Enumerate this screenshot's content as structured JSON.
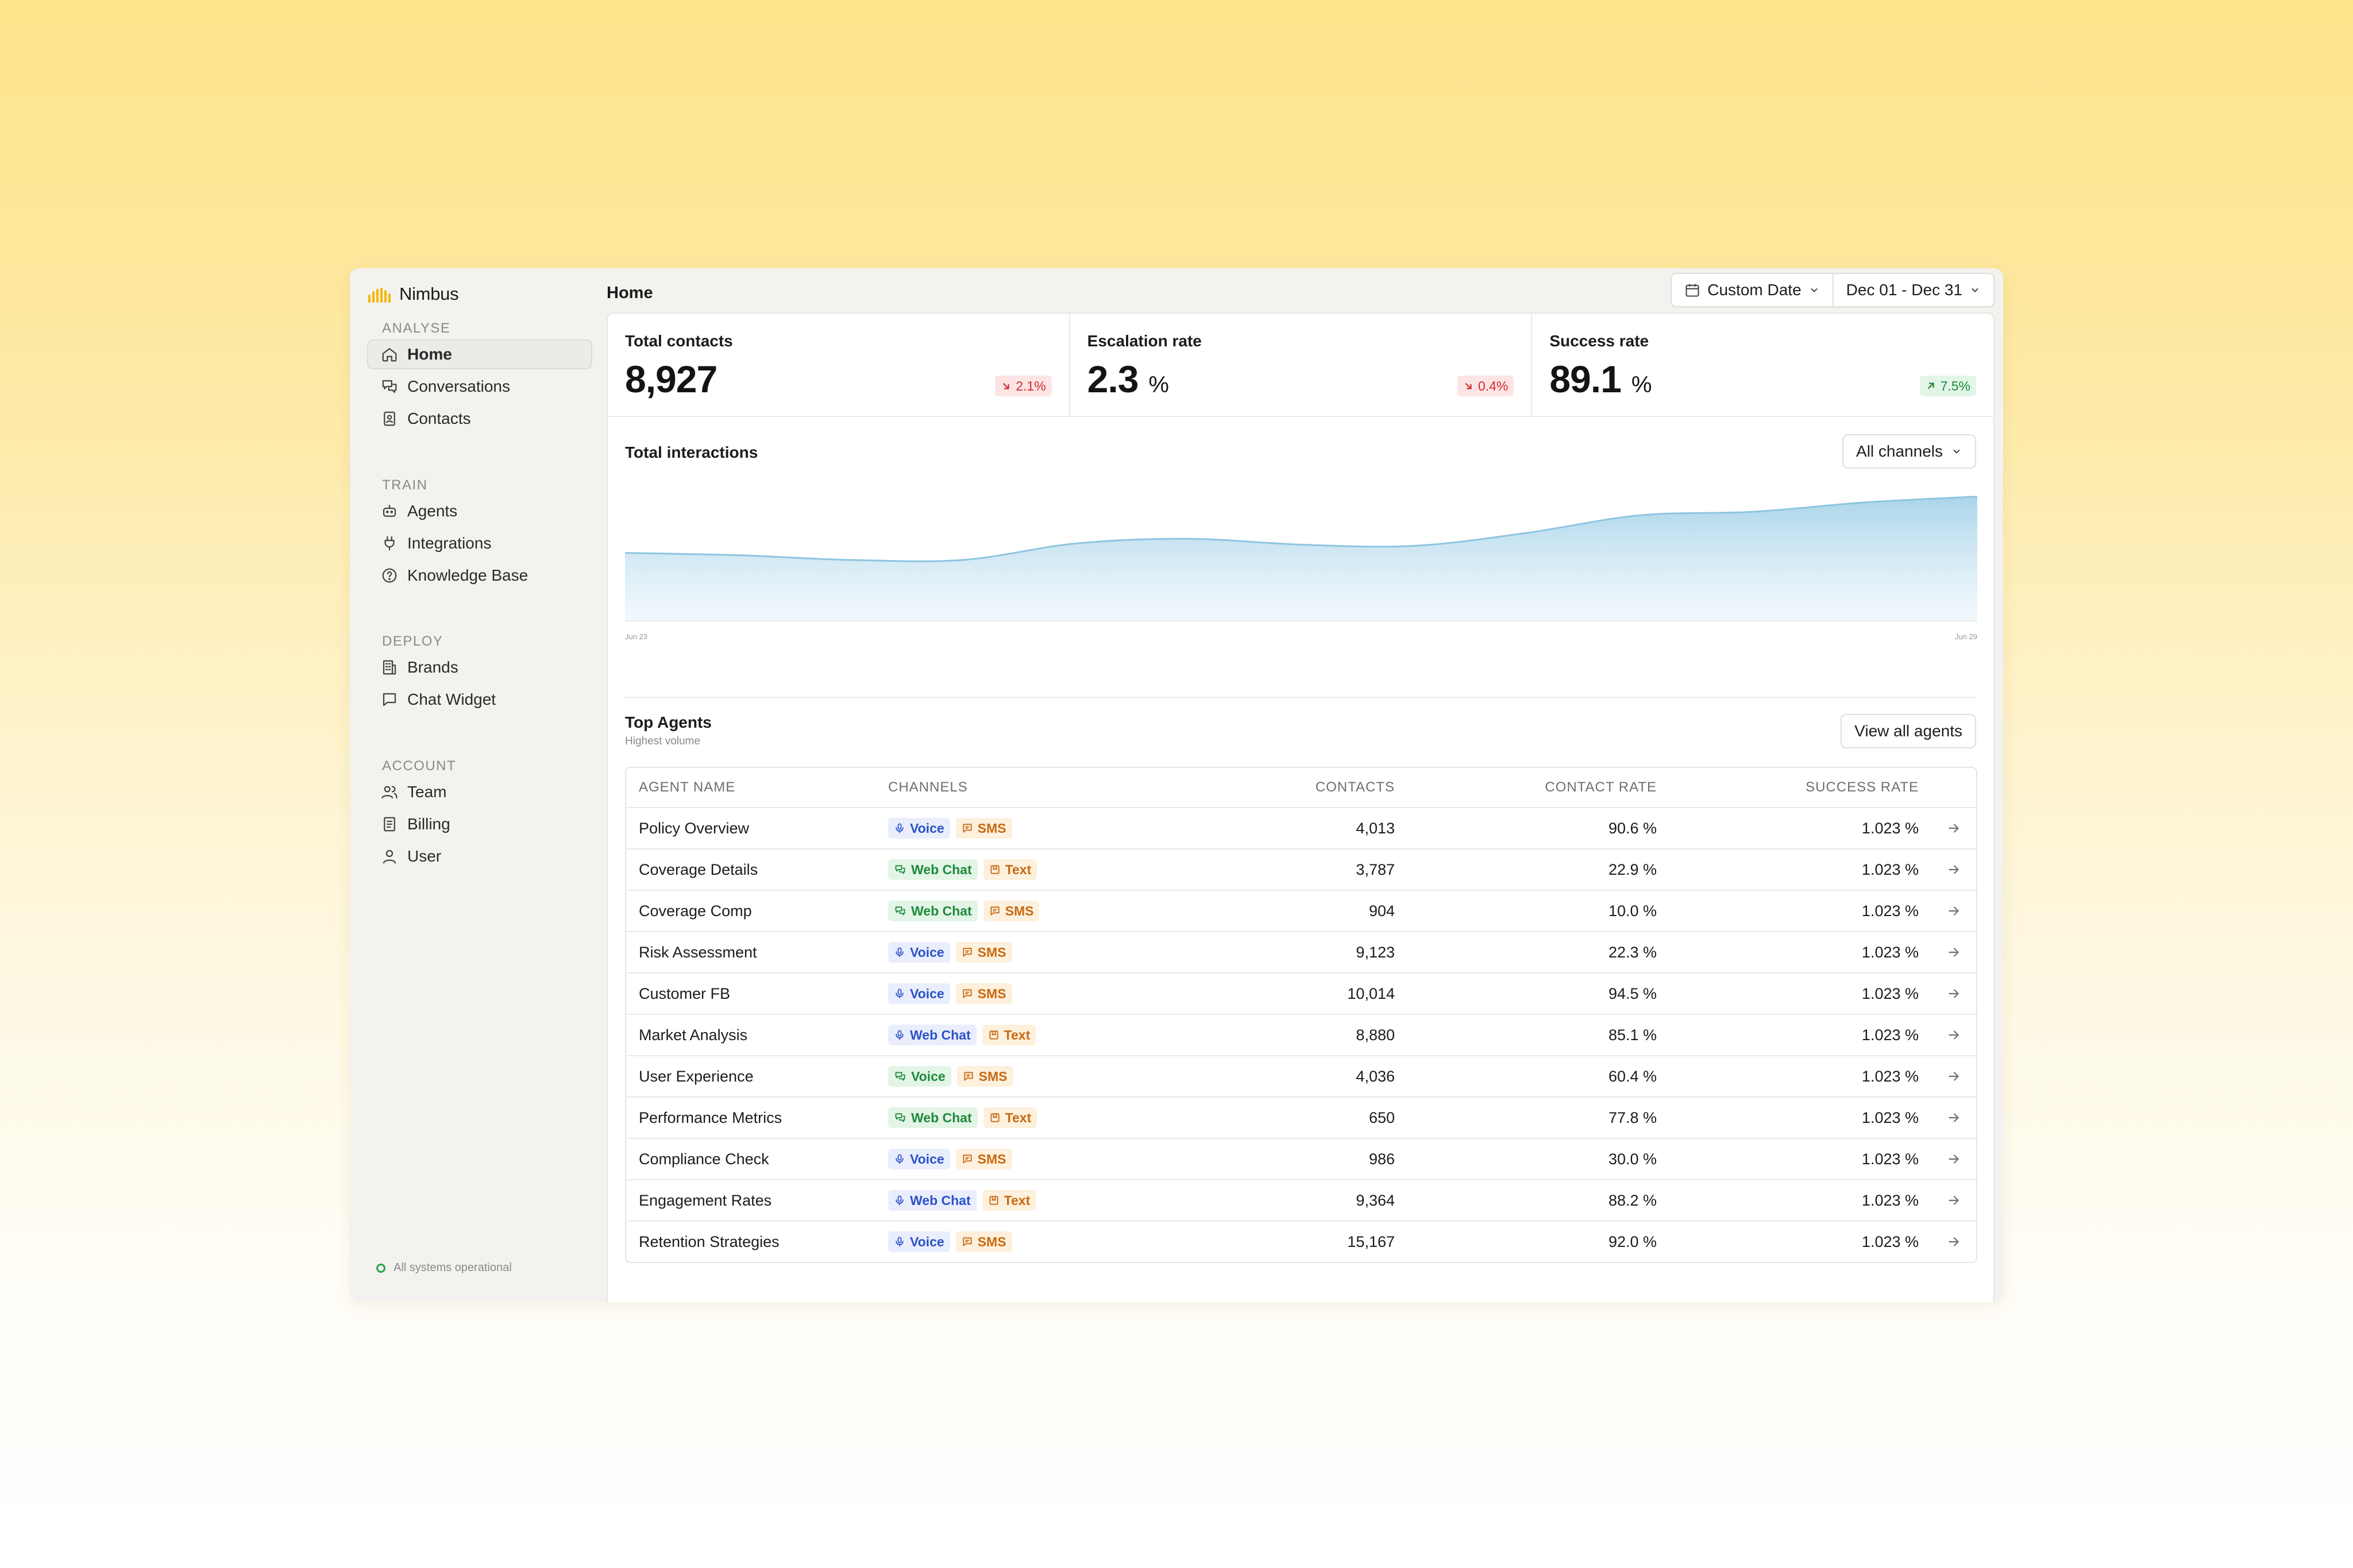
{
  "app": {
    "name": "Nimbus"
  },
  "sidebar": {
    "sections": [
      {
        "heading": "ANALYSE",
        "items": [
          {
            "label": "Home",
            "icon": "home-icon",
            "active": true
          },
          {
            "label": "Conversations",
            "icon": "chat-bubbles-icon"
          },
          {
            "label": "Contacts",
            "icon": "contact-book-icon"
          }
        ]
      },
      {
        "heading": "TRAIN",
        "items": [
          {
            "label": "Agents",
            "icon": "robot-icon"
          },
          {
            "label": "Integrations",
            "icon": "plug-icon"
          },
          {
            "label": "Knowledge Base",
            "icon": "help-circle-icon"
          }
        ]
      },
      {
        "heading": "DEPLOY",
        "items": [
          {
            "label": "Brands",
            "icon": "building-icon"
          },
          {
            "label": "Chat Widget",
            "icon": "message-square-icon"
          }
        ]
      },
      {
        "heading": "ACCOUNT",
        "items": [
          {
            "label": "Team",
            "icon": "users-icon"
          },
          {
            "label": "Billing",
            "icon": "receipt-icon"
          },
          {
            "label": "User",
            "icon": "user-icon"
          }
        ]
      }
    ],
    "status": "All systems operational"
  },
  "header": {
    "title": "Home",
    "date_mode": "Custom Date",
    "date_range": "Dec 01 - Dec 31"
  },
  "kpis": [
    {
      "label": "Total contacts",
      "value": "8,927",
      "unit": "",
      "change": "2.1%",
      "direction": "down"
    },
    {
      "label": "Escalation rate",
      "value": "2.3",
      "unit": "%",
      "change": "0.4%",
      "direction": "down"
    },
    {
      "label": "Success rate",
      "value": "89.1",
      "unit": "%",
      "change": "7.5%",
      "direction": "up"
    }
  ],
  "chart": {
    "title": "Total interactions",
    "filter": "All channels",
    "x_start_label": "Jun 23",
    "x_end_label": "Jun 29"
  },
  "chart_data": {
    "type": "area",
    "title": "Total interactions",
    "x": [
      "Jun 23",
      "",
      "",
      "",
      "",
      "",
      "",
      "",
      "",
      "",
      "",
      "",
      "Jun 29"
    ],
    "series": [
      {
        "values": [
          58,
          56,
          52,
          52,
          66,
          70,
          65,
          64,
          75,
          90,
          93,
          101,
          106
        ]
      }
    ],
    "ylim": [
      0,
      120
    ],
    "color": "#8ec5e0",
    "grid": false
  },
  "agents": {
    "title": "Top Agents",
    "subtitle": "Highest volume",
    "view_all": "View all agents",
    "columns": [
      "AGENT NAME",
      "CHANNELS",
      "CONTACTS",
      "CONTACT RATE",
      "SUCCESS RATE"
    ],
    "rows": [
      {
        "name": "Policy Overview",
        "channels": [
          {
            "type": "voice",
            "label": "Voice"
          },
          {
            "type": "sms",
            "label": "SMS"
          }
        ],
        "contacts": "4,013",
        "contact_rate": "90.6 %",
        "success_rate": "1.023 %"
      },
      {
        "name": "Coverage Details",
        "channels": [
          {
            "type": "web",
            "label": "Web Chat"
          },
          {
            "type": "text",
            "label": "Text"
          }
        ],
        "contacts": "3,787",
        "contact_rate": "22.9 %",
        "success_rate": "1.023 %"
      },
      {
        "name": "Coverage Comp",
        "channels": [
          {
            "type": "web",
            "label": "Web Chat"
          },
          {
            "type": "sms",
            "label": "SMS"
          }
        ],
        "contacts": "904",
        "contact_rate": "10.0 %",
        "success_rate": "1.023 %"
      },
      {
        "name": "Risk Assessment",
        "channels": [
          {
            "type": "voice",
            "label": "Voice"
          },
          {
            "type": "sms",
            "label": "SMS"
          }
        ],
        "contacts": "9,123",
        "contact_rate": "22.3 %",
        "success_rate": "1.023 %"
      },
      {
        "name": "Customer FB",
        "channels": [
          {
            "type": "voice",
            "label": "Voice"
          },
          {
            "type": "sms",
            "label": "SMS"
          }
        ],
        "contacts": "10,014",
        "contact_rate": "94.5 %",
        "success_rate": "1.023 %"
      },
      {
        "name": "Market Analysis",
        "channels": [
          {
            "type": "voice",
            "label": "Web Chat"
          },
          {
            "type": "text",
            "label": "Text"
          }
        ],
        "contacts": "8,880",
        "contact_rate": "85.1 %",
        "success_rate": "1.023 %"
      },
      {
        "name": "User Experience",
        "channels": [
          {
            "type": "web",
            "label": "Voice"
          },
          {
            "type": "sms",
            "label": "SMS"
          }
        ],
        "contacts": "4,036",
        "contact_rate": "60.4 %",
        "success_rate": "1.023 %"
      },
      {
        "name": "Performance Metrics",
        "channels": [
          {
            "type": "web",
            "label": "Web Chat"
          },
          {
            "type": "text",
            "label": "Text"
          }
        ],
        "contacts": "650",
        "contact_rate": "77.8 %",
        "success_rate": "1.023 %"
      },
      {
        "name": "Compliance Check",
        "channels": [
          {
            "type": "voice",
            "label": "Voice"
          },
          {
            "type": "sms",
            "label": "SMS"
          }
        ],
        "contacts": "986",
        "contact_rate": "30.0 %",
        "success_rate": "1.023 %"
      },
      {
        "name": "Engagement Rates",
        "channels": [
          {
            "type": "voice",
            "label": "Web Chat"
          },
          {
            "type": "text",
            "label": "Text"
          }
        ],
        "contacts": "9,364",
        "contact_rate": "88.2 %",
        "success_rate": "1.023 %"
      },
      {
        "name": "Retention Strategies",
        "channels": [
          {
            "type": "voice",
            "label": "Voice"
          },
          {
            "type": "sms",
            "label": "SMS"
          }
        ],
        "contacts": "15,167",
        "contact_rate": "92.0 %",
        "success_rate": "1.023 %"
      }
    ]
  }
}
